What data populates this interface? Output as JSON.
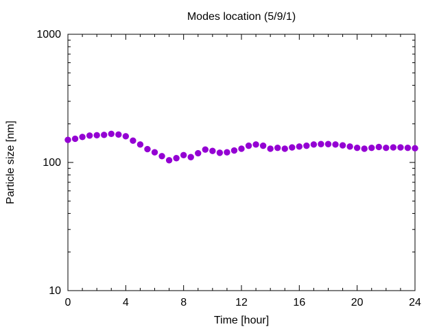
{
  "chart_data": {
    "type": "scatter",
    "title": "Modes location (5/9/1)",
    "xlabel": "Time [hour]",
    "ylabel": "Particle size [nm]",
    "xlim": [
      0,
      24
    ],
    "ylim": [
      10,
      1000
    ],
    "y_scale": "log",
    "x_ticks": [
      0,
      4,
      8,
      12,
      16,
      20,
      24
    ],
    "x_tick_labels": [
      "0",
      "4",
      "8",
      "12",
      "16",
      "20",
      "24"
    ],
    "y_ticks": [
      10,
      100,
      1000
    ],
    "y_tick_labels": [
      "10",
      "100",
      "1000"
    ],
    "grid": false,
    "legend": "none",
    "marker_color": "#9400d3",
    "series": [
      {
        "x": [
          0.0,
          0.5,
          1.0,
          1.5,
          2.0,
          2.5,
          3.0,
          3.5,
          4.0,
          4.5,
          5.0,
          5.5,
          6.0,
          6.5,
          7.0,
          7.5,
          8.0,
          8.5,
          9.0,
          9.5,
          10.0,
          10.5,
          11.0,
          11.5,
          12.0,
          12.5,
          13.0,
          13.5,
          14.0,
          14.5,
          15.0,
          15.5,
          16.0,
          16.5,
          17.0,
          17.5,
          18.0,
          18.5,
          19.0,
          19.5,
          20.0,
          20.5,
          21.0,
          21.5,
          22.0,
          22.5,
          23.0,
          23.5,
          24.0
        ],
        "y": [
          150,
          153,
          158,
          162,
          163,
          164,
          167,
          165,
          160,
          148,
          138,
          127,
          120,
          112,
          104,
          108,
          114,
          110,
          118,
          126,
          123,
          119,
          120,
          124,
          128,
          135,
          138,
          135,
          128,
          130,
          128,
          131,
          133,
          135,
          138,
          139,
          139,
          138,
          136,
          133,
          130,
          128,
          130,
          132,
          130,
          131,
          131,
          130,
          129
        ]
      }
    ]
  }
}
